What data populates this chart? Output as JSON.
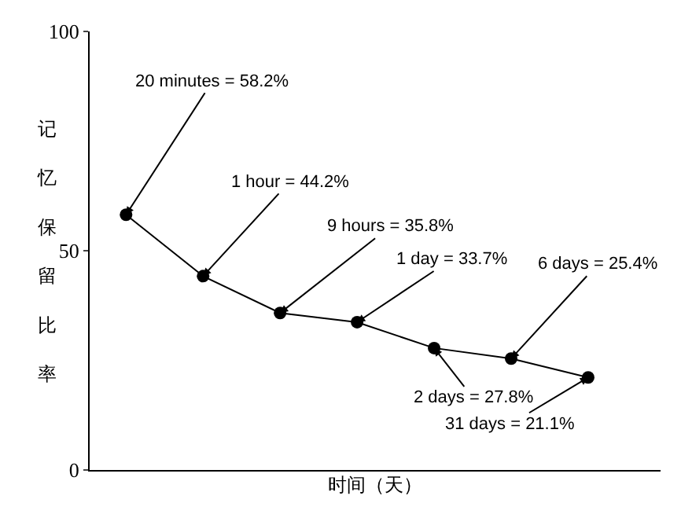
{
  "chart_data": {
    "type": "line",
    "xlabel": "时间（天）",
    "ylabel": "记忆保留比率",
    "categories": [
      null,
      null,
      null,
      null,
      null,
      null,
      null
    ],
    "series": [
      {
        "color": "#000000",
        "values": [
          58.2,
          44.2,
          35.8,
          33.7,
          27.8,
          25.4,
          21.1
        ],
        "value_labels": [
          "20 minutes = 58.2%",
          "1 hour = 44.2%",
          "9 hours = 35.8%",
          "1 day = 33.7%",
          "2 days = 27.8%",
          "6 days = 25.4%",
          "31 days = 21.1%"
        ]
      }
    ],
    "ylim": [
      0,
      100
    ],
    "yticks": [
      0,
      50,
      100
    ],
    "grid": false,
    "marker": "circle",
    "line_style": "solid"
  }
}
